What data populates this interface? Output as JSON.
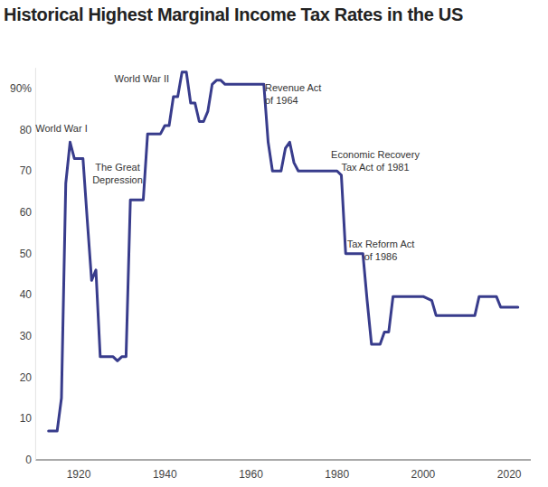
{
  "chart_data": {
    "type": "line",
    "title": "Historical Highest Marginal Income Tax Rates in the US",
    "x": [
      1913,
      1914,
      1915,
      1916,
      1917,
      1918,
      1919,
      1920,
      1921,
      1922,
      1923,
      1924,
      1925,
      1926,
      1927,
      1928,
      1929,
      1930,
      1931,
      1932,
      1933,
      1934,
      1935,
      1936,
      1937,
      1938,
      1939,
      1940,
      1941,
      1942,
      1943,
      1944,
      1945,
      1946,
      1947,
      1948,
      1949,
      1950,
      1951,
      1952,
      1953,
      1954,
      1955,
      1956,
      1957,
      1958,
      1959,
      1960,
      1961,
      1962,
      1963,
      1964,
      1965,
      1966,
      1967,
      1968,
      1969,
      1970,
      1971,
      1972,
      1973,
      1974,
      1975,
      1976,
      1977,
      1978,
      1979,
      1980,
      1981,
      1982,
      1983,
      1984,
      1985,
      1986,
      1987,
      1988,
      1989,
      1990,
      1991,
      1992,
      1993,
      1994,
      1995,
      1996,
      1997,
      1998,
      1999,
      2000,
      2001,
      2002,
      2003,
      2004,
      2005,
      2006,
      2007,
      2008,
      2009,
      2010,
      2011,
      2012,
      2013,
      2014,
      2015,
      2016,
      2017,
      2018,
      2019,
      2020,
      2021,
      2022
    ],
    "series": [
      {
        "name": "Highest marginal income tax rate",
        "color": "#383c8c",
        "values": [
          7,
          7,
          7,
          15,
          67,
          77,
          73,
          73,
          73,
          58,
          43.5,
          46,
          25,
          25,
          25,
          25,
          24,
          25,
          25,
          63,
          63,
          63,
          63,
          79,
          79,
          79,
          79,
          81,
          81,
          88,
          88,
          94,
          94,
          86.5,
          86.5,
          82,
          82,
          84.5,
          91,
          92,
          92,
          91,
          91,
          91,
          91,
          91,
          91,
          91,
          91,
          91,
          91,
          77,
          70,
          70,
          70,
          75.5,
          77,
          72,
          70,
          70,
          70,
          70,
          70,
          70,
          70,
          70,
          70,
          70,
          69,
          50,
          50,
          50,
          50,
          50,
          38.5,
          28,
          28,
          28,
          31,
          31,
          39.6,
          39.6,
          39.6,
          39.6,
          39.6,
          39.6,
          39.6,
          39.6,
          39.1,
          38.6,
          35,
          35,
          35,
          35,
          35,
          35,
          35,
          35,
          35,
          35,
          39.6,
          39.6,
          39.6,
          39.6,
          39.6,
          37,
          37,
          37,
          37,
          37
        ]
      }
    ],
    "xlim": [
      1910,
      2025
    ],
    "xticks": [
      1920,
      1940,
      1960,
      1980,
      2000,
      2020
    ],
    "ylim": [
      0,
      95
    ],
    "yticks": [
      0,
      10,
      20,
      30,
      40,
      50,
      60,
      70,
      80,
      {
        "value": 90,
        "label": "90%"
      }
    ],
    "grid": false,
    "annotations": [
      "World War I",
      "The Great\nDepression",
      "World War II",
      "Revenue Act\nof 1964",
      "Economic Recovery\nTax Act of 1981",
      "Tax Reform Act\nof 1986"
    ]
  }
}
